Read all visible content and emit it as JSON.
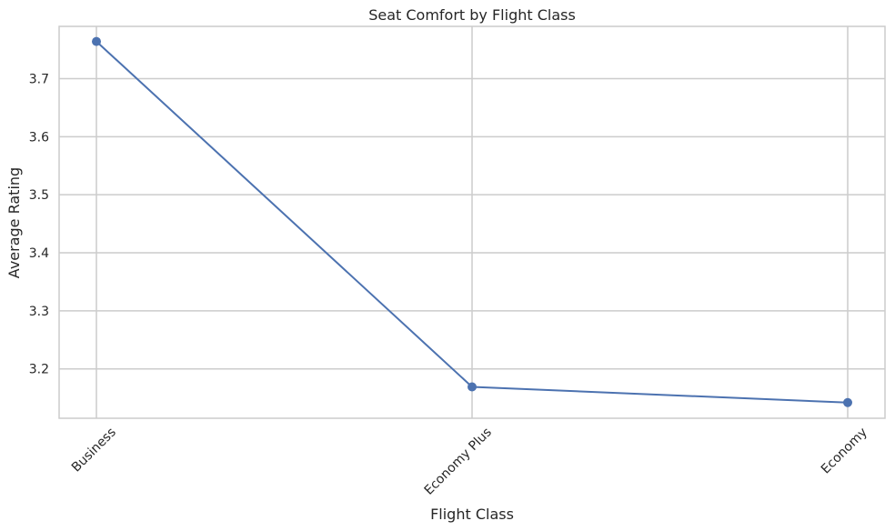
{
  "chart_data": {
    "type": "line",
    "title": "Seat Comfort by Flight Class",
    "xlabel": "Flight Class",
    "ylabel": "Average Rating",
    "categories": [
      "Business",
      "Economy Plus",
      "Economy"
    ],
    "series": [
      {
        "values": [
          3.764,
          3.169,
          3.142
        ]
      }
    ],
    "ylim": [
      3.115,
      3.79
    ],
    "yticks": [
      3.2,
      3.3,
      3.4,
      3.5,
      3.6,
      3.7
    ],
    "ytick_labels": [
      "3.2",
      "3.3",
      "3.4",
      "3.5",
      "3.6",
      "3.7"
    ],
    "grid": true,
    "x_tick_rotation_deg": 45,
    "colors": {
      "line": "#4c72b0",
      "grid": "#cccccc",
      "frame": "#cccccc",
      "text": "#262626"
    }
  }
}
